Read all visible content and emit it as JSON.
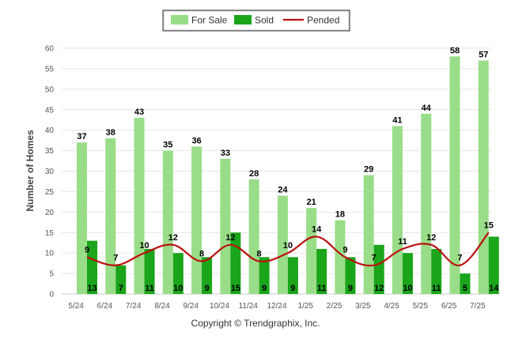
{
  "chart_data": {
    "type": "bar",
    "categories": [
      "5/24",
      "6/24",
      "7/24",
      "8/24",
      "9/24",
      "10/24",
      "11/24",
      "12/24",
      "1/25",
      "2/25",
      "3/25",
      "4/25",
      "5/25",
      "6/25",
      "7/25"
    ],
    "series": [
      {
        "name": "For Sale",
        "type": "bar",
        "color": "#99dd88",
        "values": [
          37,
          38,
          43,
          35,
          36,
          33,
          28,
          24,
          21,
          18,
          29,
          41,
          44,
          58,
          57
        ]
      },
      {
        "name": "Sold",
        "type": "bar",
        "color": "#1aa51a",
        "values": [
          13,
          7,
          11,
          10,
          9,
          15,
          9,
          9,
          11,
          9,
          12,
          10,
          11,
          5,
          14
        ]
      },
      {
        "name": "Pended",
        "type": "line",
        "color": "#bb1111",
        "values": [
          9,
          7,
          10,
          12,
          8,
          12,
          8,
          10,
          14,
          9,
          7,
          11,
          12,
          7,
          15
        ]
      }
    ],
    "ylabel": "Number of Homes",
    "xlabel": "",
    "ylim": [
      0,
      60
    ],
    "yticks": [
      0,
      5,
      10,
      15,
      20,
      25,
      30,
      35,
      40,
      45,
      50,
      55,
      60
    ],
    "grid": true,
    "legend_position": "top-center"
  },
  "footer": {
    "copyright": "Copyright © Trendgraphix, Inc."
  }
}
